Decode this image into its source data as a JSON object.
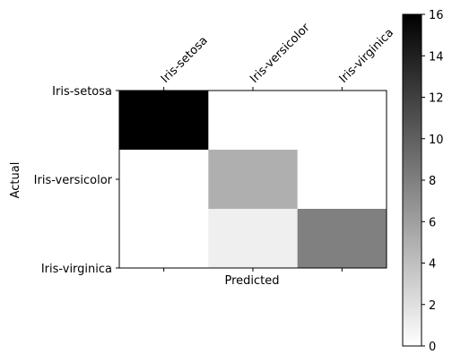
{
  "chart_data": {
    "type": "heatmap",
    "title": "",
    "xlabel": "Predicted",
    "ylabel": "Actual",
    "x_categories": [
      "Iris-setosa",
      "Iris-versicolor",
      "Iris-virginica"
    ],
    "y_categories": [
      "Iris-setosa",
      "Iris-versicolor",
      "Iris-virginica"
    ],
    "values": [
      [
        16,
        0,
        0
      ],
      [
        0,
        5,
        0
      ],
      [
        0,
        1,
        8
      ]
    ],
    "colormap": "Greys",
    "color_range": [
      0,
      16
    ],
    "colorbar_ticks": [
      0,
      2,
      4,
      6,
      8,
      10,
      12,
      14,
      16
    ],
    "x_tick_position": "top",
    "grid": false
  }
}
